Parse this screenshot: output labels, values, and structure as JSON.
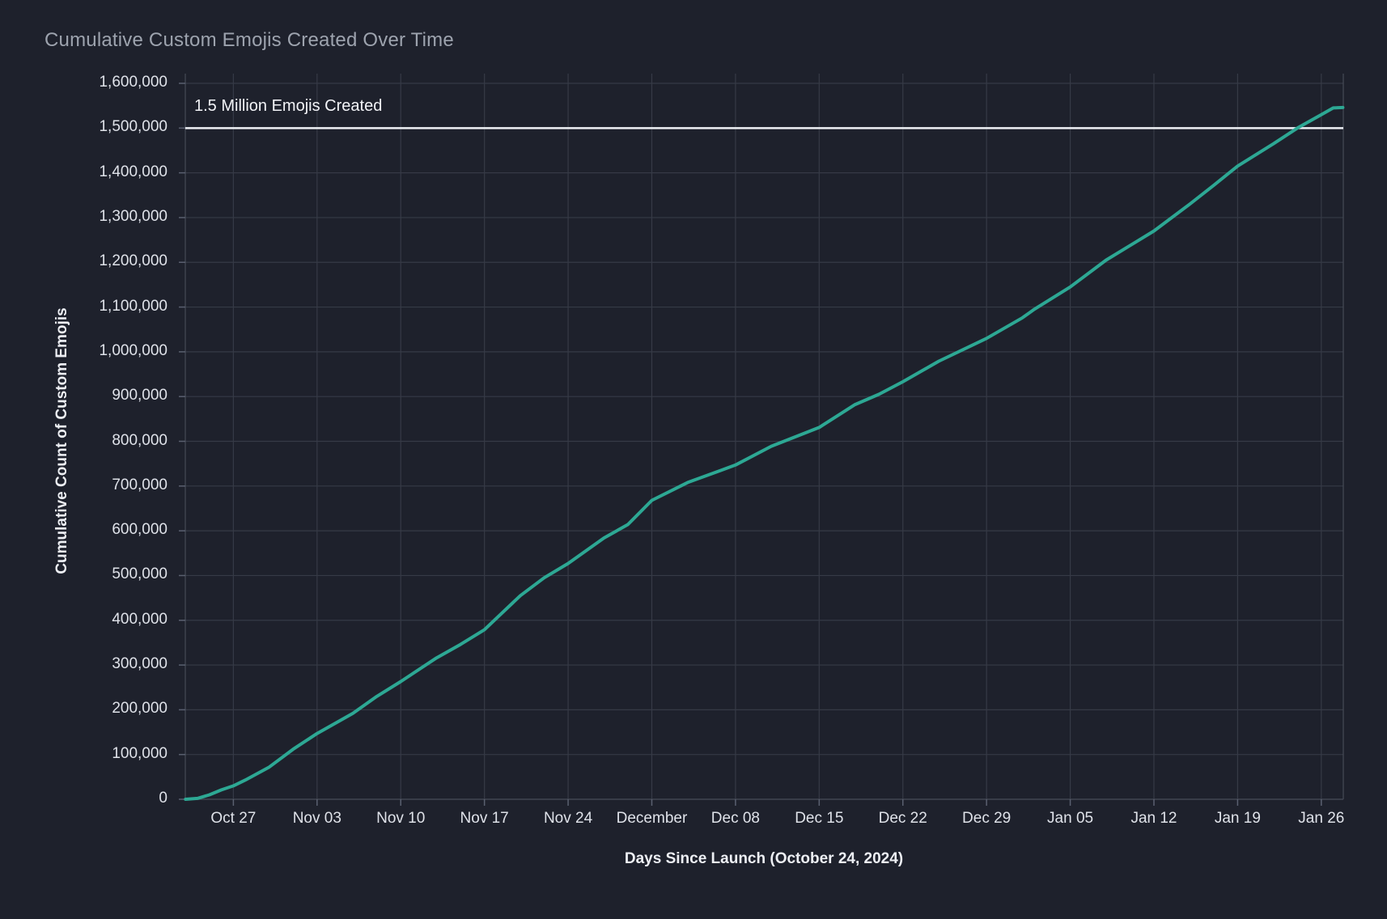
{
  "title": "Cumulative Custom Emojis Created Over Time",
  "colors": {
    "background": "#1e212c",
    "line": "#2da894",
    "grid": "#363a46",
    "border": "#454a56",
    "tick": "#5a6070",
    "reference_line": "#eef0f5",
    "title_text": "#9da3ae",
    "tick_label_text": "#dfe2e9",
    "axis_title_text": "#edeff4"
  },
  "chart_data": {
    "type": "line",
    "title": "Cumulative Custom Emojis Created Over Time",
    "xlabel": "Days Since Launch (October 24, 2024)",
    "ylabel": "Cumulative Count of Custom Emojis",
    "legend": "none",
    "grid": "on",
    "xlim_days": [
      -1.02,
      95.84
    ],
    "ylim": [
      0,
      1621700
    ],
    "x_ticks": [
      {
        "day": 3,
        "label": "Oct 27"
      },
      {
        "day": 10,
        "label": "Nov 03"
      },
      {
        "day": 17,
        "label": "Nov 10"
      },
      {
        "day": 24,
        "label": "Nov 17"
      },
      {
        "day": 31,
        "label": "Nov 24"
      },
      {
        "day": 38,
        "label": "December"
      },
      {
        "day": 45,
        "label": "Dec 08"
      },
      {
        "day": 52,
        "label": "Dec 15"
      },
      {
        "day": 59,
        "label": "Dec 22"
      },
      {
        "day": 66,
        "label": "Dec 29"
      },
      {
        "day": 73,
        "label": "Jan 05"
      },
      {
        "day": 80,
        "label": "Jan 12"
      },
      {
        "day": 87,
        "label": "Jan 19"
      },
      {
        "day": 94,
        "label": "Jan 26"
      }
    ],
    "y_ticks": [
      {
        "value": 0,
        "label": "0"
      },
      {
        "value": 100000,
        "label": "100,000"
      },
      {
        "value": 200000,
        "label": "200,000"
      },
      {
        "value": 300000,
        "label": "300,000"
      },
      {
        "value": 400000,
        "label": "400,000"
      },
      {
        "value": 500000,
        "label": "500,000"
      },
      {
        "value": 600000,
        "label": "600,000"
      },
      {
        "value": 700000,
        "label": "700,000"
      },
      {
        "value": 800000,
        "label": "800,000"
      },
      {
        "value": 900000,
        "label": "900,000"
      },
      {
        "value": 1000000,
        "label": "1,000,000"
      },
      {
        "value": 1100000,
        "label": "1,100,000"
      },
      {
        "value": 1200000,
        "label": "1,200,000"
      },
      {
        "value": 1300000,
        "label": "1,300,000"
      },
      {
        "value": 1400000,
        "label": "1,400,000"
      },
      {
        "value": 1500000,
        "label": "1,500,000"
      },
      {
        "value": 1600000,
        "label": "1,600,000"
      }
    ],
    "reference_line": {
      "value": 1500000,
      "label": "1.5 Million Emojis Created"
    },
    "series": [
      {
        "name": "cumulative-custom-emojis",
        "points": [
          {
            "day": -1,
            "date": "Oct 23",
            "value": 0
          },
          {
            "day": 0,
            "date": "Oct 24",
            "value": 2000
          },
          {
            "day": 1,
            "date": "Oct 25",
            "value": 10000
          },
          {
            "day": 2,
            "date": "Oct 26",
            "value": 21000
          },
          {
            "day": 3,
            "date": "Oct 27",
            "value": 30000
          },
          {
            "day": 4,
            "date": "Oct 28",
            "value": 43000
          },
          {
            "day": 6,
            "date": "Oct 30",
            "value": 72000
          },
          {
            "day": 8,
            "date": "Nov 01",
            "value": 112000
          },
          {
            "day": 10,
            "date": "Nov 03",
            "value": 147000
          },
          {
            "day": 13,
            "date": "Nov 06",
            "value": 192000
          },
          {
            "day": 15,
            "date": "Nov 08",
            "value": 230000
          },
          {
            "day": 17,
            "date": "Nov 10",
            "value": 263000
          },
          {
            "day": 20,
            "date": "Nov 13",
            "value": 316000
          },
          {
            "day": 22,
            "date": "Nov 15",
            "value": 346000
          },
          {
            "day": 24,
            "date": "Nov 17",
            "value": 379000
          },
          {
            "day": 27,
            "date": "Nov 20",
            "value": 455000
          },
          {
            "day": 29,
            "date": "Nov 22",
            "value": 495000
          },
          {
            "day": 31,
            "date": "Nov 24",
            "value": 527000
          },
          {
            "day": 34,
            "date": "Nov 27",
            "value": 584000
          },
          {
            "day": 36,
            "date": "Nov 29",
            "value": 614000
          },
          {
            "day": 38,
            "date": "Dec 01",
            "value": 668000
          },
          {
            "day": 41,
            "date": "Dec 04",
            "value": 708000
          },
          {
            "day": 45,
            "date": "Dec 08",
            "value": 747000
          },
          {
            "day": 48,
            "date": "Dec 11",
            "value": 789000
          },
          {
            "day": 52,
            "date": "Dec 15",
            "value": 831000
          },
          {
            "day": 55,
            "date": "Dec 18",
            "value": 882000
          },
          {
            "day": 57,
            "date": "Dec 20",
            "value": 905000
          },
          {
            "day": 59,
            "date": "Dec 22",
            "value": 933000
          },
          {
            "day": 62,
            "date": "Dec 25",
            "value": 979000
          },
          {
            "day": 66,
            "date": "Dec 29",
            "value": 1030000
          },
          {
            "day": 69,
            "date": "Jan 01",
            "value": 1076000
          },
          {
            "day": 70,
            "date": "Jan 02",
            "value": 1095000
          },
          {
            "day": 73,
            "date": "Jan 05",
            "value": 1145000
          },
          {
            "day": 76,
            "date": "Jan 08",
            "value": 1205000
          },
          {
            "day": 80,
            "date": "Jan 12",
            "value": 1270000
          },
          {
            "day": 83,
            "date": "Jan 15",
            "value": 1330000
          },
          {
            "day": 85,
            "date": "Jan 17",
            "value": 1372000
          },
          {
            "day": 87,
            "date": "Jan 19",
            "value": 1415000
          },
          {
            "day": 90,
            "date": "Jan 22",
            "value": 1465000
          },
          {
            "day": 92,
            "date": "Jan 24",
            "value": 1500000
          },
          {
            "day": 94,
            "date": "Jan 26",
            "value": 1530000
          },
          {
            "day": 95,
            "date": "Jan 27",
            "value": 1545000
          },
          {
            "day": 95.8,
            "date": "Jan 28",
            "value": 1546000
          }
        ]
      }
    ]
  }
}
